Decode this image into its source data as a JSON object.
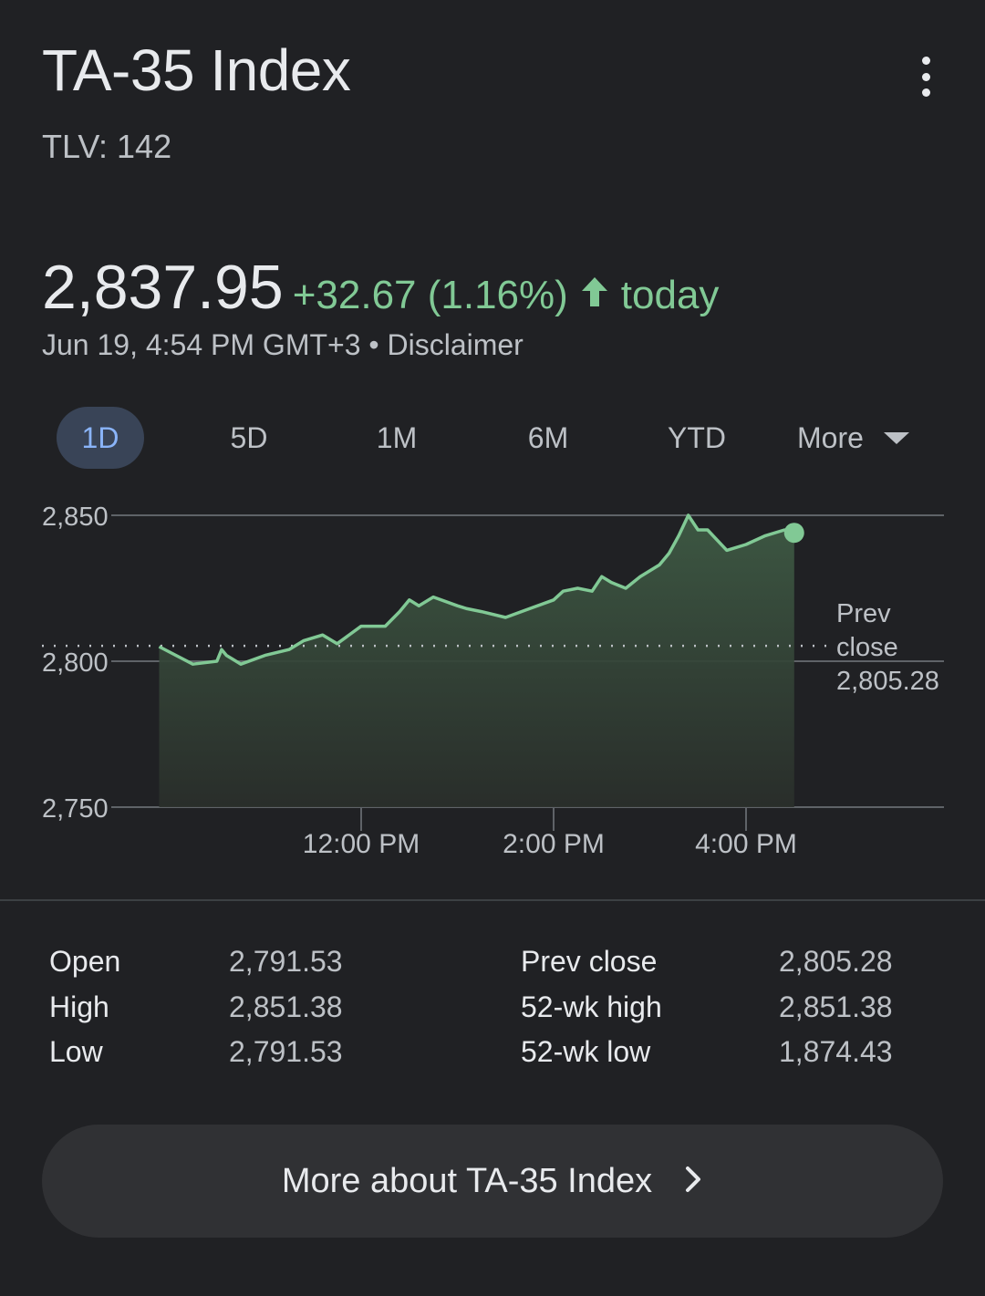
{
  "header": {
    "title": "TA-35 Index",
    "ticker": "TLV: 142"
  },
  "quote": {
    "price": "2,837.95",
    "change": "+32.67 (1.16%)",
    "period": "today",
    "timestamp": "Jun 19, 4:54 PM GMT+3",
    "separator": "•",
    "disclaimer": "Disclaimer"
  },
  "tabs": [
    {
      "label": "1D",
      "active": true
    },
    {
      "label": "5D",
      "active": false
    },
    {
      "label": "1M",
      "active": false
    },
    {
      "label": "6M",
      "active": false
    },
    {
      "label": "YTD",
      "active": false
    },
    {
      "label": "More",
      "active": false
    }
  ],
  "chart_data": {
    "type": "area",
    "yticks": [
      "2,850",
      "2,800",
      "2,750"
    ],
    "ylim": [
      2750,
      2850
    ],
    "xticks": [
      "12:00 PM",
      "2:00 PM",
      "4:00 PM"
    ],
    "xlim_hours": [
      9.75,
      17.5
    ],
    "xtick_hours": [
      12,
      14,
      16
    ],
    "grid": true,
    "prev_close": 2805.28,
    "prev_close_label": [
      "Prev",
      "close",
      "2,805.28"
    ],
    "series": [
      {
        "x": [
          9.9,
          10.25,
          10.5,
          10.55,
          10.6,
          10.75,
          11.0,
          11.25,
          11.4,
          11.6,
          11.75,
          12.0,
          12.25,
          12.4,
          12.5,
          12.6,
          12.75,
          13.0,
          13.1,
          13.25,
          13.5,
          13.75,
          14.0,
          14.1,
          14.25,
          14.4,
          14.5,
          14.6,
          14.75,
          14.9,
          15.1,
          15.2,
          15.3,
          15.4,
          15.5,
          15.6,
          15.8,
          16.0,
          16.2,
          16.4,
          16.5
        ],
        "y": [
          2805,
          2799,
          2800,
          2804,
          2802,
          2799,
          2802,
          2804,
          2807,
          2809,
          2806,
          2812,
          2812,
          2817,
          2821,
          2819,
          2822,
          2819,
          2818,
          2817,
          2815,
          2818,
          2821,
          2824,
          2825,
          2824,
          2829,
          2827,
          2825,
          2829,
          2833,
          2837,
          2843,
          2850,
          2845,
          2845,
          2838,
          2840,
          2843,
          2845,
          2844
        ]
      }
    ],
    "colors": {
      "line": "#81c995",
      "area_top": "#3e5a44",
      "grid": "#5f6368",
      "text": "#bdc1c6"
    }
  },
  "stats": [
    {
      "label": "Open",
      "value": "2,791.53"
    },
    {
      "label": "High",
      "value": "2,851.38"
    },
    {
      "label": "Low",
      "value": "2,791.53"
    },
    {
      "label": "Prev close",
      "value": "2,805.28"
    },
    {
      "label": "52-wk high",
      "value": "2,851.38"
    },
    {
      "label": "52-wk low",
      "value": "1,874.43"
    }
  ],
  "more_button": {
    "label": "More about TA-35 Index"
  },
  "icons": [
    "more-vert-icon",
    "arrow-up-icon",
    "caret-down-icon",
    "chevron-right-icon"
  ]
}
